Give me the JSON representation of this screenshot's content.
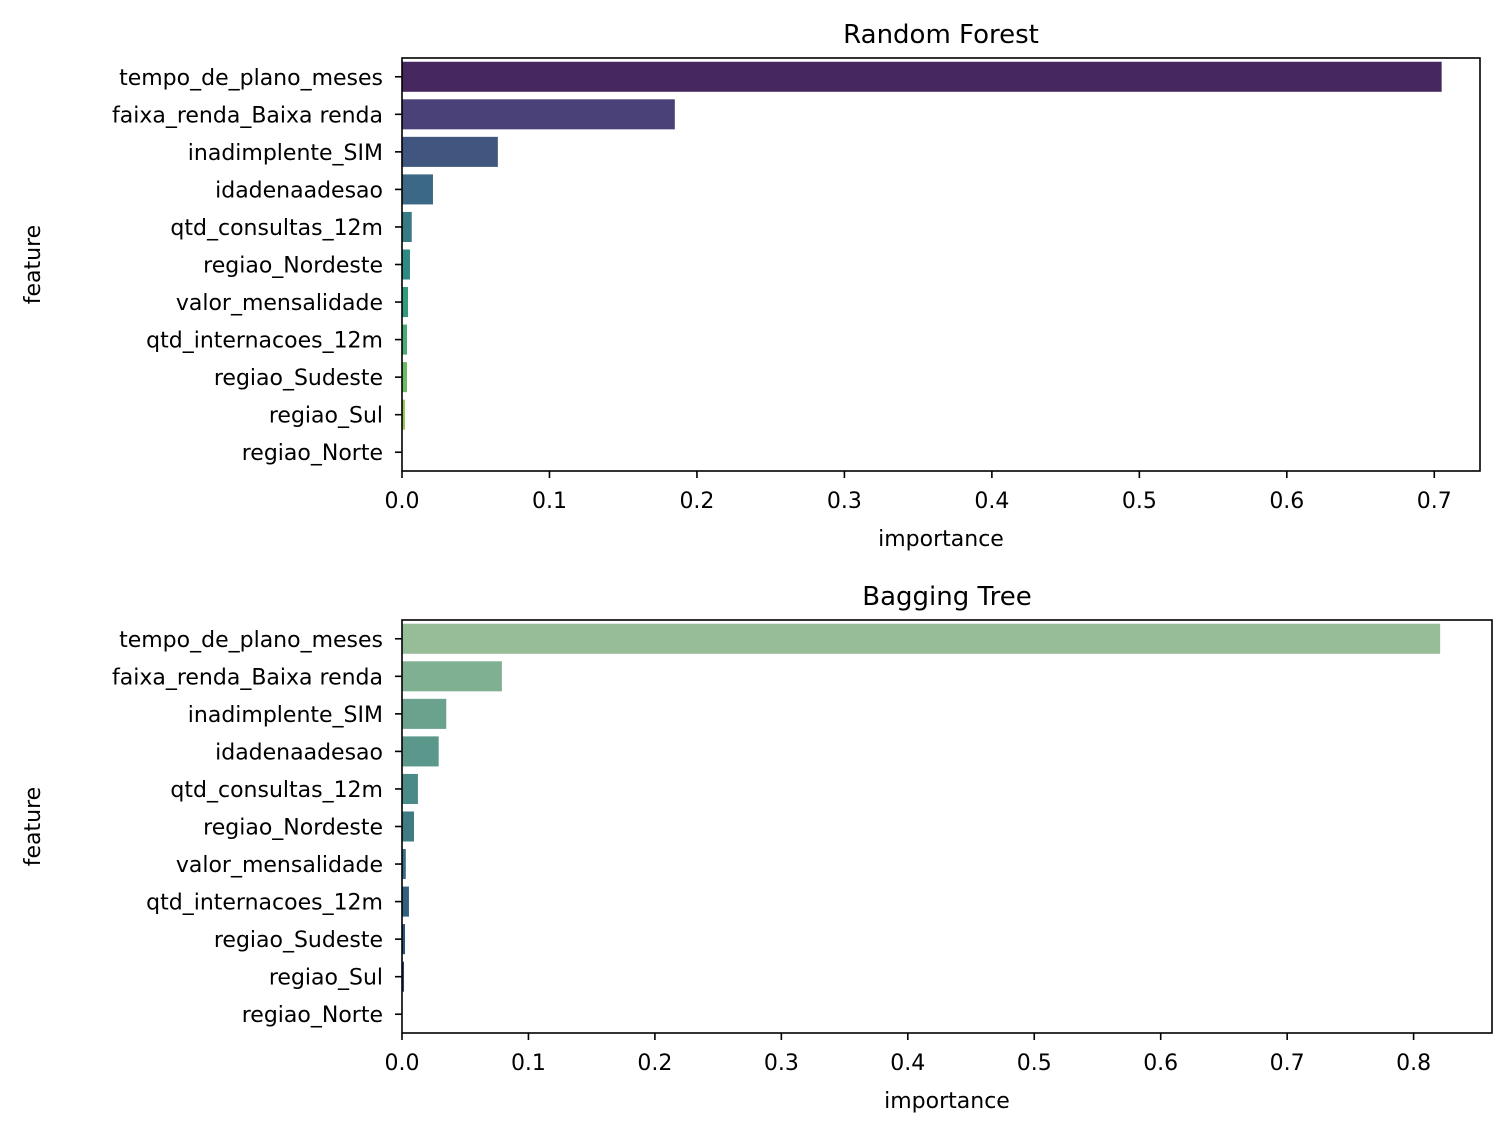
{
  "chart_data": [
    {
      "type": "bar",
      "orientation": "horizontal",
      "title": "Random Forest",
      "xlabel": "importance",
      "ylabel": "feature",
      "xlim": [
        0,
        0.731
      ],
      "xticks": [
        "0.0",
        "0.1",
        "0.2",
        "0.3",
        "0.4",
        "0.5",
        "0.6",
        "0.7"
      ],
      "categories": [
        "tempo_de_plano_meses",
        "faixa_renda_Baixa renda",
        "inadimplente_SIM",
        "idadenaadesao",
        "qtd_consultas_12m",
        "regiao_Nordeste",
        "valor_mensalidade",
        "qtd_internacoes_12m",
        "regiao_Sudeste",
        "regiao_Sul",
        "regiao_Norte"
      ],
      "values": [
        0.705,
        0.185,
        0.065,
        0.021,
        0.0066,
        0.0054,
        0.0041,
        0.0034,
        0.0034,
        0.002,
        0.0
      ],
      "colors": [
        "#46285f",
        "#4a4179",
        "#41567f",
        "#3b6884",
        "#377985",
        "#2f8a83",
        "#349a7f",
        "#4aab75",
        "#6cba66",
        "#97c656",
        "#c4d04c"
      ],
      "grid": false
    },
    {
      "type": "bar",
      "orientation": "horizontal",
      "title": "Bagging Tree",
      "xlabel": "importance",
      "ylabel": "feature",
      "xlim": [
        0,
        0.862
      ],
      "xticks": [
        "0.0",
        "0.1",
        "0.2",
        "0.3",
        "0.4",
        "0.5",
        "0.6",
        "0.7",
        "0.8"
      ],
      "categories": [
        "tempo_de_plano_meses",
        "faixa_renda_Baixa renda",
        "inadimplente_SIM",
        "idadenaadesao",
        "qtd_consultas_12m",
        "regiao_Nordeste",
        "valor_mensalidade",
        "qtd_internacoes_12m",
        "regiao_Sudeste",
        "regiao_Sul",
        "regiao_Norte"
      ],
      "values": [
        0.821,
        0.079,
        0.035,
        0.029,
        0.0126,
        0.0095,
        0.003,
        0.0055,
        0.0024,
        0.0016,
        0.0
      ],
      "colors": [
        "#96bd98",
        "#80b092",
        "#6aa28d",
        "#5b978b",
        "#4a8a88",
        "#3f7b85",
        "#386d82",
        "#34607f",
        "#2d527b",
        "#2a4373",
        "#2b3567"
      ],
      "grid": false
    }
  ]
}
